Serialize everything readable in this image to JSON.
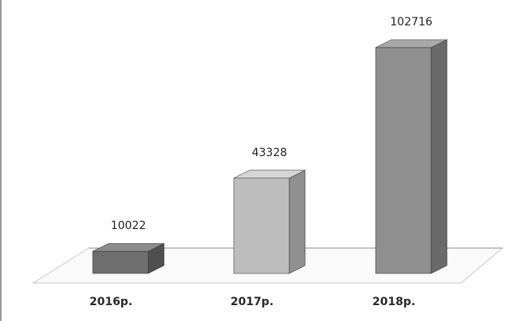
{
  "chart_data": {
    "type": "bar",
    "style": "3d-column",
    "categories": [
      "2016р.",
      "2017р.",
      "2018р."
    ],
    "values": [
      10022,
      43328,
      102716
    ],
    "data_labels": [
      "10022",
      "43328",
      "102716"
    ],
    "title": "",
    "xlabel": "",
    "ylabel": "",
    "ylim": [
      0,
      102716
    ],
    "grid": false,
    "legend": "none",
    "colors": {
      "2016р.": {
        "front": "#6e6e6e",
        "side": "#4f4f4f",
        "top": "#8c8c8c"
      },
      "2017р.": {
        "front": "#bdbdbd",
        "side": "#909090",
        "top": "#d6d6d6"
      },
      "2018р.": {
        "front": "#8f8f8f",
        "side": "#6a6a6a",
        "top": "#a9a9a9"
      }
    }
  }
}
